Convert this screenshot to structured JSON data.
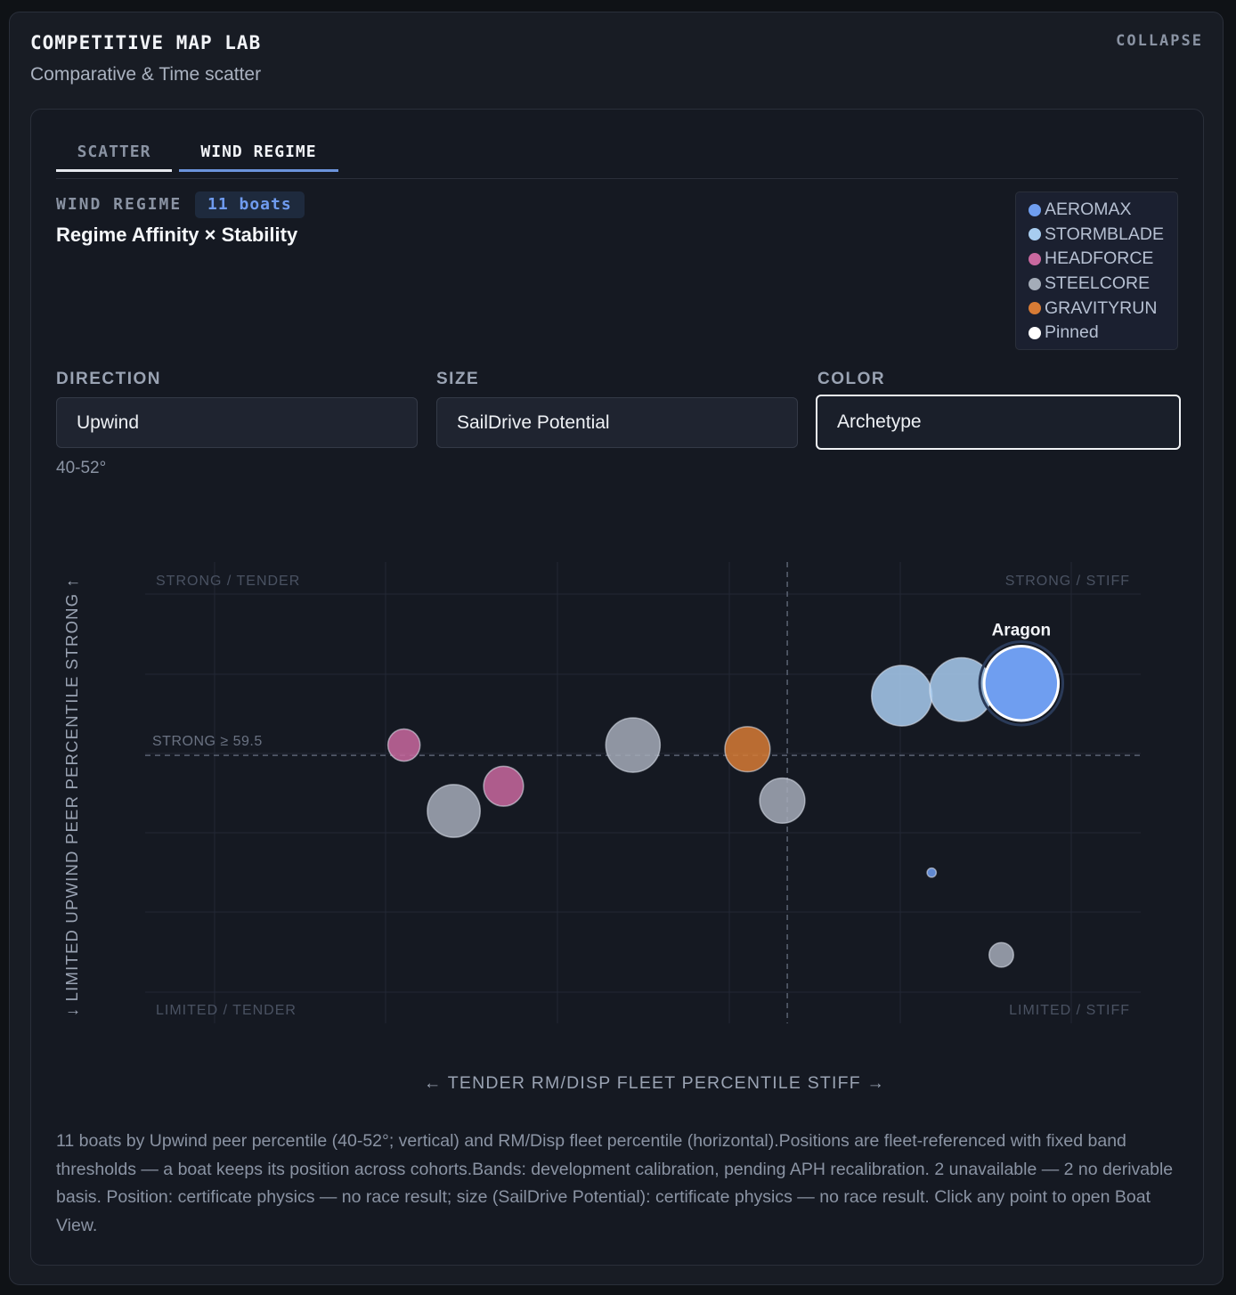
{
  "header": {
    "title": "COMPETITIVE MAP LAB",
    "subtitle": "Comparative & Time scatter",
    "collapse_label": "COLLAPSE"
  },
  "tabs": [
    {
      "label": "SCATTER",
      "active": false
    },
    {
      "label": "WIND REGIME",
      "active": true
    }
  ],
  "regime": {
    "label": "WIND REGIME",
    "count_badge": "11 boats",
    "chart_title": "Regime Affinity × Stability"
  },
  "legend": [
    {
      "label": "AEROMAX",
      "color": "#6f9ef0"
    },
    {
      "label": "STORMBLADE",
      "color": "#a8cdf0"
    },
    {
      "label": "HEADFORCE",
      "color": "#c9689f"
    },
    {
      "label": "STEELCORE",
      "color": "#a4acb8"
    },
    {
      "label": "GRAVITYRUN",
      "color": "#d77b35"
    },
    {
      "label": "Pinned",
      "color": "#ffffff"
    }
  ],
  "controls": {
    "direction": {
      "label": "DIRECTION",
      "value": "Upwind",
      "hint": "40-52°"
    },
    "size": {
      "label": "SIZE",
      "value": "SailDrive Potential"
    },
    "color": {
      "label": "COLOR",
      "value": "Archetype"
    }
  },
  "chart_data": {
    "type": "scatter",
    "xlabel": "← TENDER RM/DISP FLEET PERCENTILE STIFF →",
    "ylabel": "↓ LIMITED UPWIND PEER PERCENTILE STRONG ↑",
    "quadrants": {
      "top_left": "STRONG / TENDER",
      "top_right": "STRONG / STIFF",
      "bottom_left": "LIMITED / TENDER",
      "bottom_right": "LIMITED / STIFF"
    },
    "threshold_label": "STRONG ≥ 59.5",
    "threshold_y": 59.5,
    "threshold_x": 64.5,
    "xlim": [
      0,
      100
    ],
    "ylim": [
      0,
      100
    ],
    "points": [
      {
        "x": 26,
        "y": 62,
        "size": 0.35,
        "archetype": "HEADFORCE",
        "color": "#c9689f"
      },
      {
        "x": 36,
        "y": 52,
        "size": 0.45,
        "archetype": "HEADFORCE",
        "color": "#c9689f"
      },
      {
        "x": 31,
        "y": 46,
        "size": 0.62,
        "archetype": "STEELCORE",
        "color": "#a4acb8"
      },
      {
        "x": 49,
        "y": 62,
        "size": 0.64,
        "archetype": "STEELCORE",
        "color": "#a4acb8"
      },
      {
        "x": 60.5,
        "y": 61,
        "size": 0.52,
        "archetype": "GRAVITYRUN",
        "color": "#d77b35"
      },
      {
        "x": 64,
        "y": 48.5,
        "size": 0.52,
        "archetype": "STEELCORE",
        "color": "#a4acb8"
      },
      {
        "x": 76,
        "y": 74,
        "size": 0.72,
        "archetype": "STORMBLADE",
        "color": "#a8cdf0"
      },
      {
        "x": 82,
        "y": 75.5,
        "size": 0.76,
        "archetype": "STORMBLADE",
        "color": "#a8cdf0"
      },
      {
        "x": 88,
        "y": 77,
        "size": 0.9,
        "archetype": "AEROMAX",
        "color": "#6f9ef0",
        "pinned": true,
        "label": "Aragon"
      },
      {
        "x": 79,
        "y": 31,
        "size": 0.05,
        "archetype": "AEROMAX",
        "color": "#6f9ef0"
      },
      {
        "x": 86,
        "y": 11,
        "size": 0.25,
        "archetype": "STEELCORE",
        "color": "#a4acb8"
      }
    ]
  },
  "footnote": "11 boats by Upwind peer percentile (40-52°; vertical) and RM/Disp fleet percentile (horizontal).Positions are fleet-referenced with fixed band thresholds — a boat keeps its position across cohorts.Bands: development calibration, pending APH recalibration. 2 unavailable — 2 no derivable basis. Position: certificate physics — no race result; size (SailDrive Potential): certificate physics — no race result. Click any point to open Boat View."
}
